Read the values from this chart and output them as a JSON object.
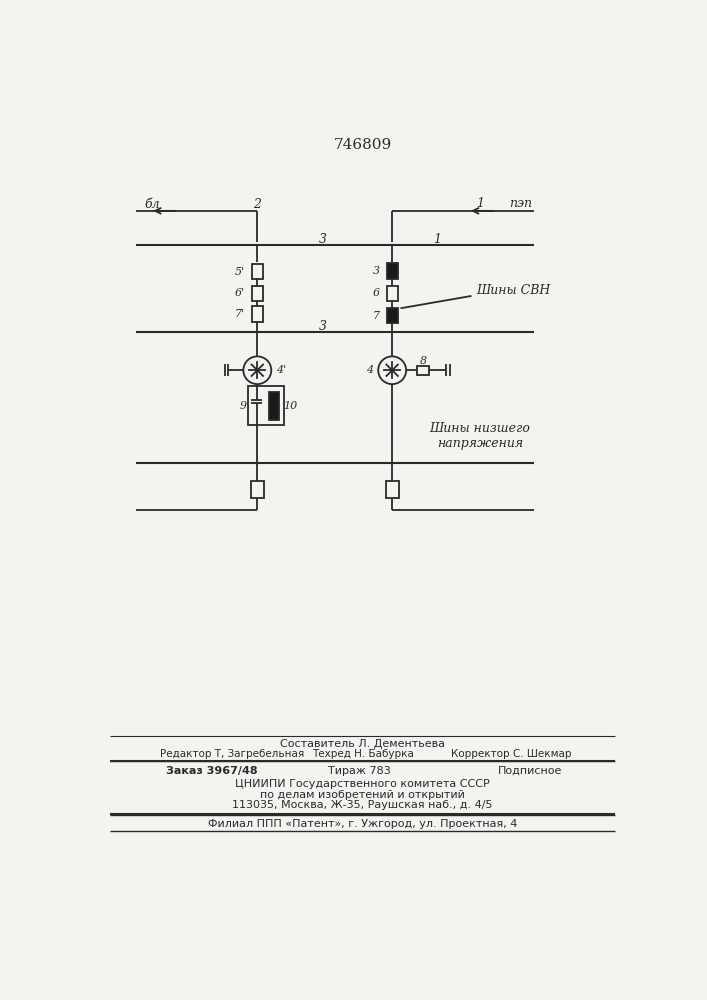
{
  "title": "746809",
  "bg_color": "#f5f3ef",
  "line_color": "#2a2a2a",
  "label_BL": "бл",
  "label_PEP": "пэп",
  "label_shiny_svn": "Шины СВН",
  "label_shiny_niz": "Шины низшего\nнапряжения",
  "footer_line1": "Составитель Л. Дементьева",
  "footer_line2a": "Редактор Т, Загребельная",
  "footer_line2b": "Техред Н. Бабурка",
  "footer_line2c": "Корректор С. Шекмар",
  "footer_line3a": "Заказ 3967/48",
  "footer_line3b": "Тираж 783",
  "footer_line3c": "Подписное",
  "footer_line4": "ЦНИИПИ Государственного комитета СССР",
  "footer_line5": "по делам изобретений и открытий",
  "footer_line6": "113035, Москва, Ж-35, Раушская наб., д. 4/5",
  "footer_line7": "Филиал ППП «Патент», г. Ужгород, ул. Проектная, 4"
}
